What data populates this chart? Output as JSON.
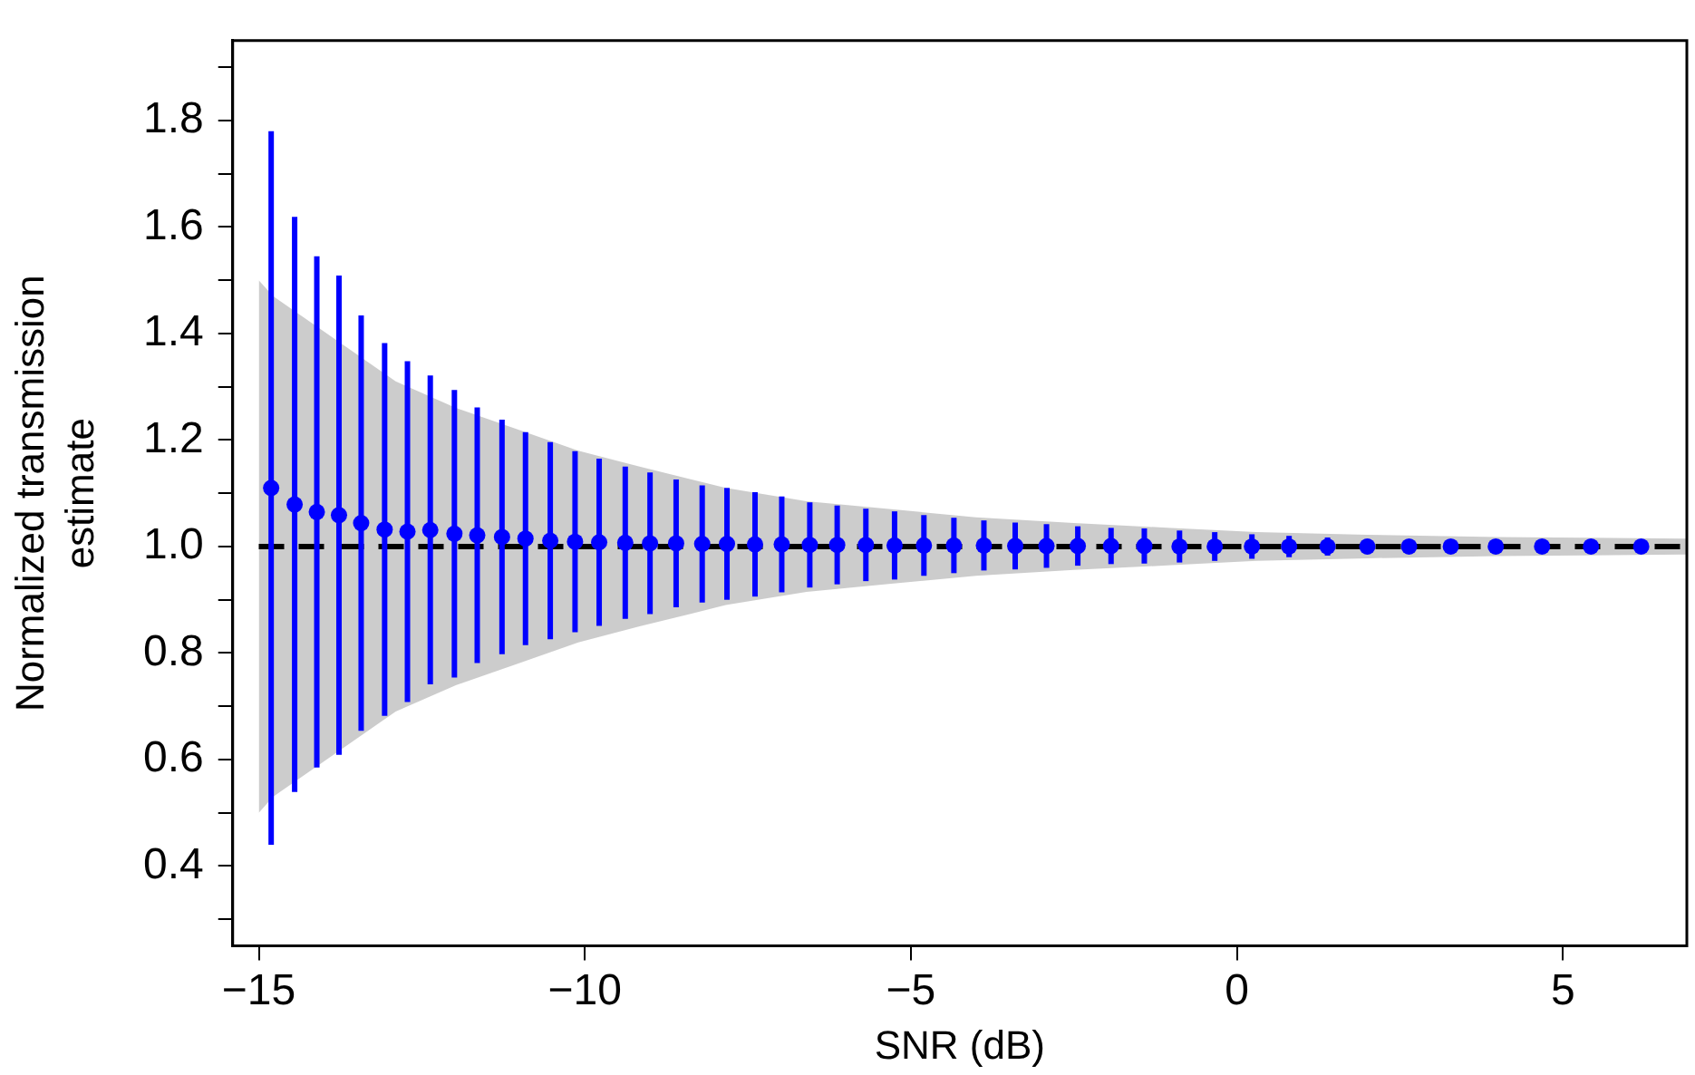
{
  "chart_data": {
    "type": "scatter",
    "xlabel": "SNR (dB)",
    "ylabel": "Normalized transmission\nestimate",
    "xlim": [
      -15.4,
      6.9
    ],
    "ylim": [
      0.25,
      1.95
    ],
    "xticks": [
      {
        "value": -15,
        "label": "−15"
      },
      {
        "value": -10,
        "label": "−10"
      },
      {
        "value": -5,
        "label": "−5"
      },
      0,
      5
    ],
    "yticks": [
      {
        "value": 0.3,
        "label": null
      },
      0.4,
      {
        "value": 0.5,
        "label": null
      },
      0.6,
      {
        "value": 0.7,
        "label": null
      },
      0.8,
      {
        "value": 0.9,
        "label": null
      },
      {
        "value": 1,
        "label": "1.0"
      },
      {
        "value": 1.1,
        "label": null
      },
      1.2,
      {
        "value": 1.3,
        "label": null
      },
      1.4,
      {
        "value": 1.5,
        "label": null
      },
      1.6,
      {
        "value": 1.7,
        "label": null
      },
      1.8,
      {
        "value": 1.9,
        "label": null
      }
    ],
    "grid": false,
    "legend": false,
    "series": [
      {
        "type": "line",
        "color": "#000000",
        "line_style": "dashed",
        "marker": "none",
        "x": [
          -15,
          -14.78,
          -13.84,
          -12.9,
          -11.97,
          -11.03,
          -10.1,
          -9.16,
          -7.84,
          -6.6,
          -5.3,
          -4,
          -2.5,
          -1,
          0.3,
          2,
          4,
          6.9
        ],
        "values": [
          1,
          1,
          1,
          1,
          1,
          1,
          1,
          1,
          1,
          1,
          1,
          1,
          1,
          1,
          1,
          1,
          1,
          1
        ],
        "upper": [
          1.5,
          1.47,
          1.39,
          1.31,
          1.26,
          1.22,
          1.18,
          1.15,
          1.11,
          1.085,
          1.07,
          1.055,
          1.044,
          1.035,
          1.027,
          1.022,
          1.018,
          1.015
        ],
        "lower": [
          0.5,
          0.53,
          0.61,
          0.69,
          0.74,
          0.78,
          0.82,
          0.85,
          0.89,
          0.915,
          0.93,
          0.945,
          0.956,
          0.965,
          0.973,
          0.978,
          0.982,
          0.985
        ]
      },
      {
        "color": "#0000ff",
        "marker": "circle",
        "x": [
          -14.81,
          -14.45,
          -14.11,
          -13.77,
          -13.43,
          -13.07,
          -12.72,
          -12.37,
          -12.0,
          -11.65,
          -11.27,
          -10.91,
          -10.53,
          -10.15,
          -9.78,
          -9.38,
          -9.0,
          -8.6,
          -8.2,
          -7.82,
          -7.39,
          -6.98,
          -6.55,
          -6.13,
          -5.69,
          -5.25,
          -4.8,
          -4.34,
          -3.88,
          -3.4,
          -2.92,
          -2.44,
          -1.93,
          -1.42,
          -0.88,
          -0.34,
          0.23,
          0.8,
          1.39,
          2.0,
          2.64,
          3.28,
          3.97,
          4.68,
          5.43,
          6.2
        ],
        "values": [
          1.11,
          1.079,
          1.065,
          1.059,
          1.044,
          1.032,
          1.028,
          1.031,
          1.024,
          1.021,
          1.018,
          1.015,
          1.011,
          1.009,
          1.008,
          1.007,
          1.006,
          1.006,
          1.005,
          1.005,
          1.004,
          1.004,
          1.003,
          1.003,
          1.003,
          1.002,
          1.002,
          1.002,
          1.002,
          1.001,
          1.001,
          1.001,
          1.001,
          1.001,
          1.0,
          1.0,
          1.0,
          1.0,
          1.0,
          1.0,
          1.0,
          1.0,
          1.0,
          1.0,
          1.0,
          1.0
        ],
        "errors": [
          0.67,
          0.54,
          0.48,
          0.45,
          0.39,
          0.35,
          0.32,
          0.29,
          0.27,
          0.24,
          0.22,
          0.2,
          0.185,
          0.17,
          0.157,
          0.143,
          0.133,
          0.12,
          0.11,
          0.105,
          0.098,
          0.09,
          0.08,
          0.074,
          0.068,
          0.064,
          0.057,
          0.052,
          0.047,
          0.044,
          0.041,
          0.037,
          0.034,
          0.033,
          0.03,
          0.027,
          0.023,
          0.02,
          0.017,
          0.014,
          0.012,
          0.01,
          0.009,
          0.008,
          0.007,
          0.006
        ]
      }
    ]
  }
}
